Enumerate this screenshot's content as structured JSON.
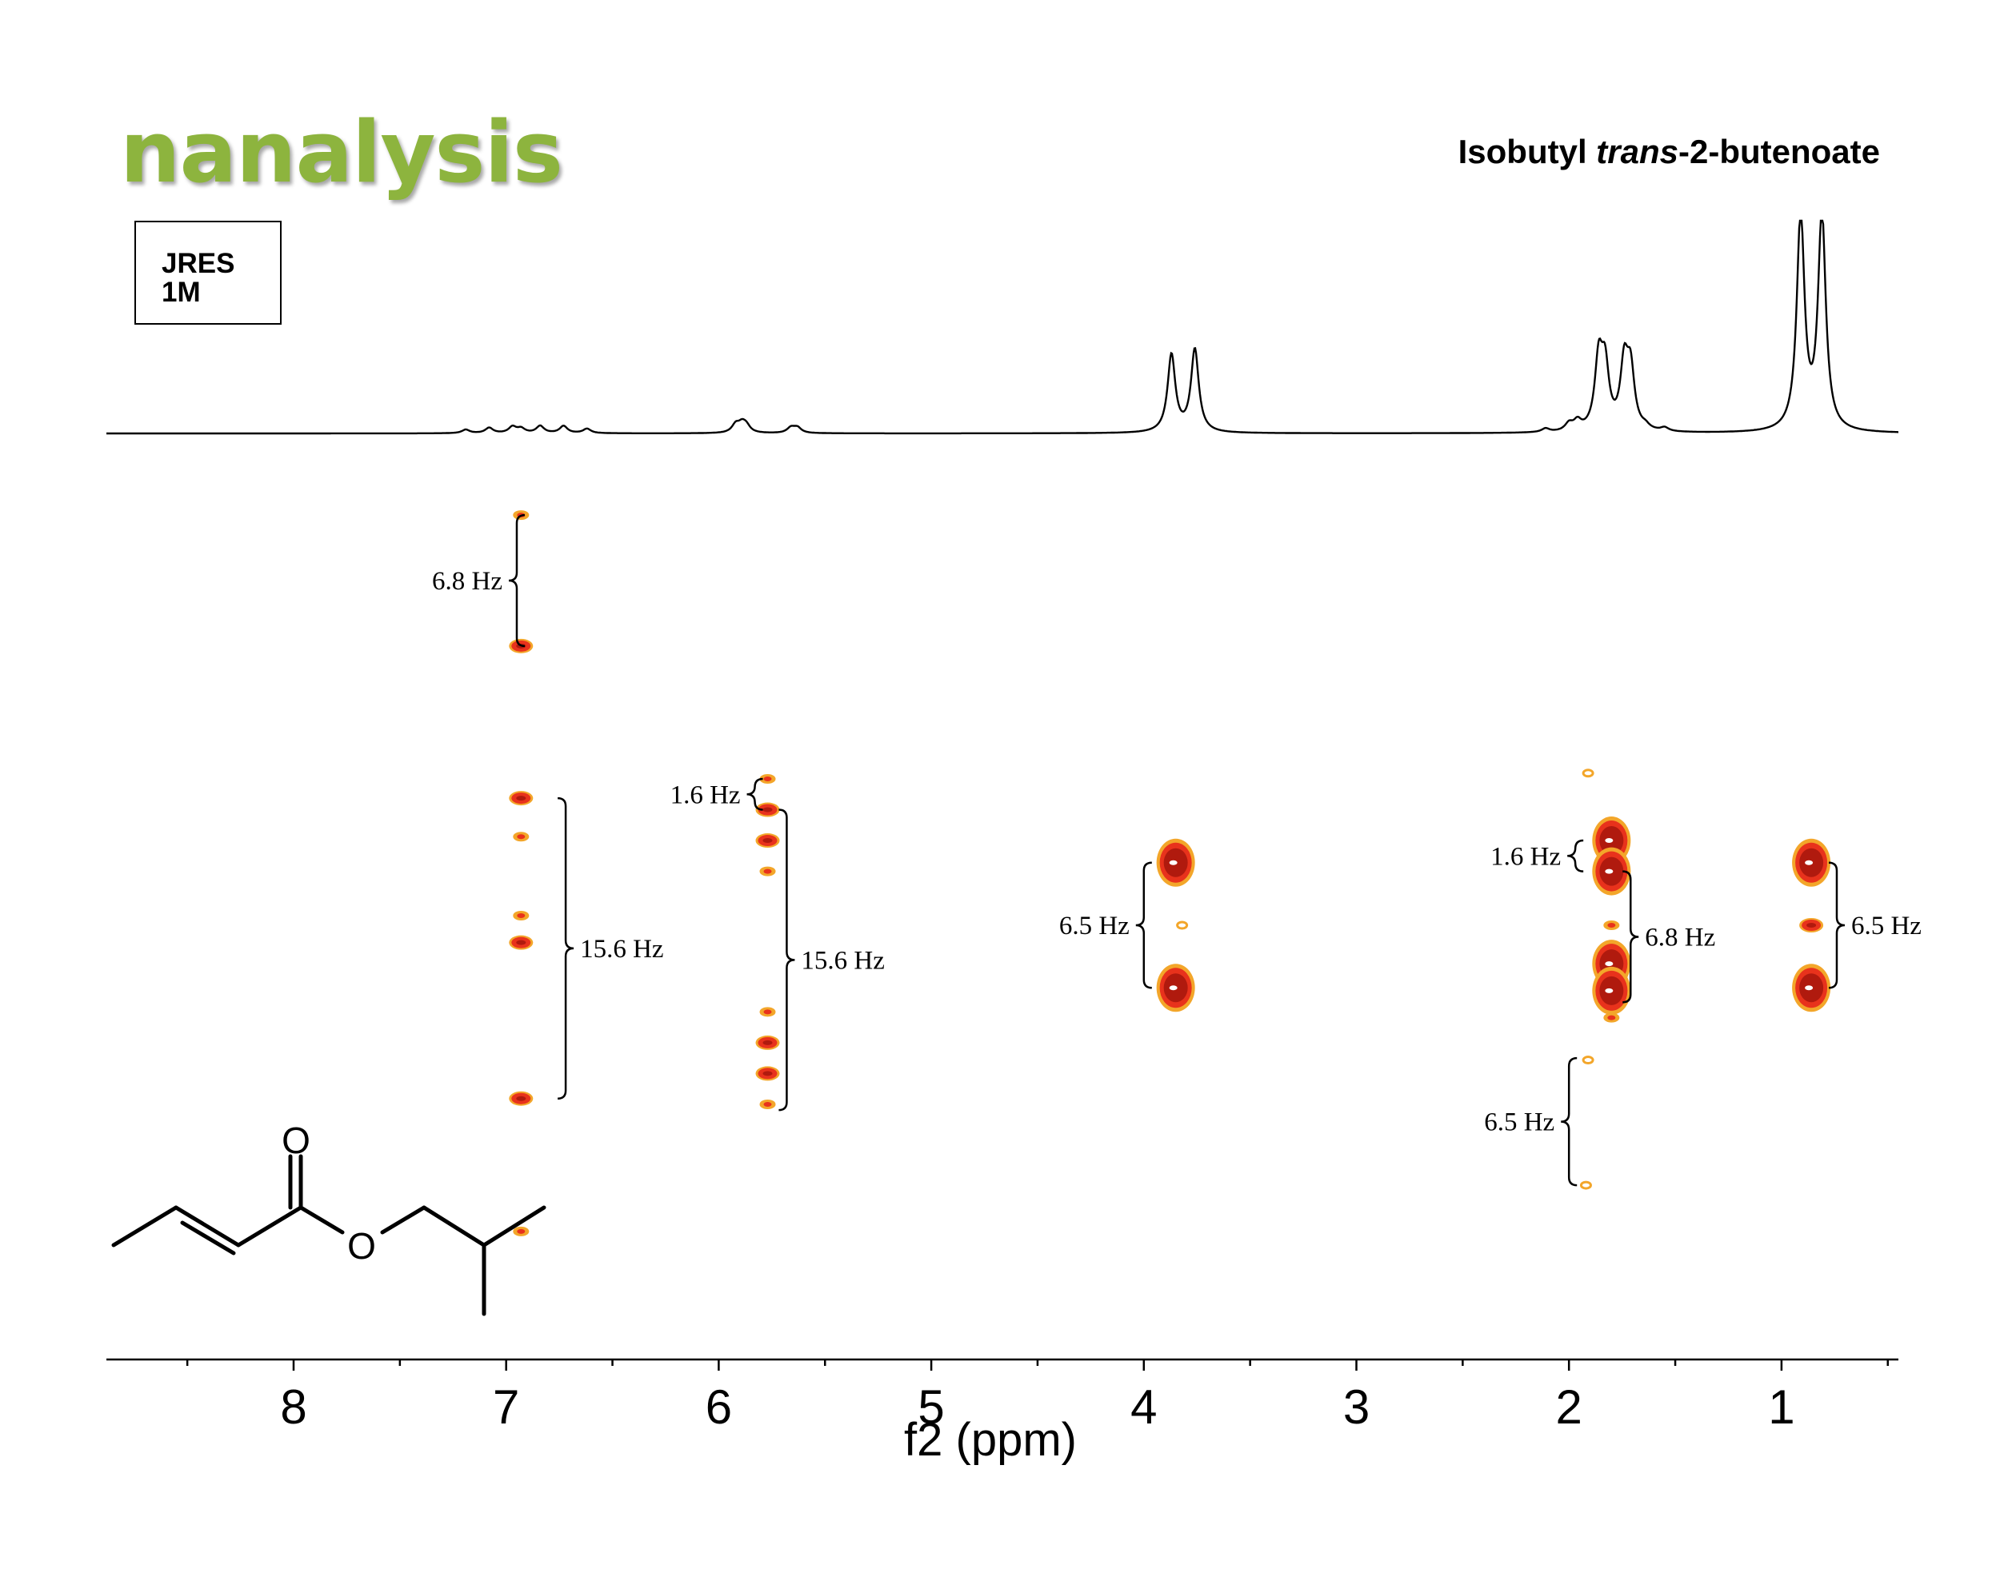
{
  "logo_text": "nanalysis",
  "compound": {
    "prefix": "Isobutyl ",
    "italic": "trans",
    "suffix": "-2-butenoate"
  },
  "experiment": {
    "line1": "JRES",
    "line2": "1M"
  },
  "colors": {
    "logo": "#8db43e",
    "contour_dark": "#b01a0e",
    "contour_mid": "#e8321c",
    "contour_light": "#f3a62a"
  },
  "chart_data": {
    "type": "2D NMR J-resolved contour with 1D projection",
    "xlabel": "f2 (ppm)",
    "xlim": [
      8.9,
      0.55
    ],
    "x_ticks": [
      8,
      7,
      6,
      5,
      4,
      3,
      2,
      1
    ],
    "x_tick_labels": [
      "8",
      "7",
      "6",
      "5",
      "4",
      "3",
      "2",
      "1"
    ],
    "projection_peaks_ppm": [
      {
        "ppm": 7.19,
        "h": 0.02
      },
      {
        "ppm": 7.08,
        "h": 0.03
      },
      {
        "ppm": 6.97,
        "h": 0.035
      },
      {
        "ppm": 6.93,
        "h": 0.025
      },
      {
        "ppm": 6.84,
        "h": 0.04
      },
      {
        "ppm": 6.73,
        "h": 0.04
      },
      {
        "ppm": 6.62,
        "h": 0.025
      },
      {
        "ppm": 5.92,
        "h": 0.045
      },
      {
        "ppm": 5.89,
        "h": 0.045
      },
      {
        "ppm": 5.87,
        "h": 0.035
      },
      {
        "ppm": 5.66,
        "h": 0.03
      },
      {
        "ppm": 5.63,
        "h": 0.03
      },
      {
        "ppm": 3.87,
        "h": 0.43
      },
      {
        "ppm": 3.76,
        "h": 0.46
      },
      {
        "ppm": 2.11,
        "h": 0.02
      },
      {
        "ppm": 2.0,
        "h": 0.04
      },
      {
        "ppm": 1.96,
        "h": 0.05
      },
      {
        "ppm": 1.86,
        "h": 0.38
      },
      {
        "ppm": 1.83,
        "h": 0.33
      },
      {
        "ppm": 1.74,
        "h": 0.35
      },
      {
        "ppm": 1.71,
        "h": 0.32
      },
      {
        "ppm": 1.64,
        "h": 0.02
      },
      {
        "ppm": 1.55,
        "h": 0.02
      },
      {
        "ppm": 0.91,
        "h": 1.2
      },
      {
        "ppm": 0.81,
        "h": 1.2
      }
    ],
    "cross_peaks": [
      {
        "ppm": 6.93,
        "f1": 21.3,
        "level": 1
      },
      {
        "ppm": 6.93,
        "f1": 14.5,
        "level": 2
      },
      {
        "ppm": 6.93,
        "f1": 6.6,
        "level": 2
      },
      {
        "ppm": 6.93,
        "f1": 4.6,
        "level": 1
      },
      {
        "ppm": 6.93,
        "f1": 0.5,
        "level": 1
      },
      {
        "ppm": 6.93,
        "f1": -0.9,
        "level": 2
      },
      {
        "ppm": 6.93,
        "f1": -9.0,
        "level": 2
      },
      {
        "ppm": 6.93,
        "f1": -15.9,
        "level": 1
      },
      {
        "ppm": 5.77,
        "f1": 7.6,
        "level": 1
      },
      {
        "ppm": 5.77,
        "f1": 6.0,
        "level": 2
      },
      {
        "ppm": 5.77,
        "f1": 4.4,
        "level": 2
      },
      {
        "ppm": 5.77,
        "f1": 2.8,
        "level": 1
      },
      {
        "ppm": 5.77,
        "f1": -4.5,
        "level": 1
      },
      {
        "ppm": 5.77,
        "f1": -6.1,
        "level": 2
      },
      {
        "ppm": 5.77,
        "f1": -7.7,
        "level": 2
      },
      {
        "ppm": 5.77,
        "f1": -9.3,
        "level": 1
      },
      {
        "ppm": 3.85,
        "f1": 3.25,
        "level": 3
      },
      {
        "ppm": 3.85,
        "f1": -3.25,
        "level": 3
      },
      {
        "ppm": 3.82,
        "f1": 0.0,
        "level": 0
      },
      {
        "ppm": 1.8,
        "f1": 4.4,
        "level": 3
      },
      {
        "ppm": 1.8,
        "f1": 2.8,
        "level": 3
      },
      {
        "ppm": 1.8,
        "f1": 0.0,
        "level": 1
      },
      {
        "ppm": 1.8,
        "f1": -2.0,
        "level": 3
      },
      {
        "ppm": 1.8,
        "f1": -3.4,
        "level": 3
      },
      {
        "ppm": 1.8,
        "f1": -4.8,
        "level": 1
      },
      {
        "ppm": 1.91,
        "f1": 7.9,
        "level": 0
      },
      {
        "ppm": 1.91,
        "f1": -7.0,
        "level": 0
      },
      {
        "ppm": 1.92,
        "f1": -13.5,
        "level": 0
      },
      {
        "ppm": 0.86,
        "f1": 3.25,
        "level": 3
      },
      {
        "ppm": 0.86,
        "f1": 0.0,
        "level": 2
      },
      {
        "ppm": 0.86,
        "f1": -3.25,
        "level": 3
      }
    ],
    "coupling_annotations": [
      {
        "label": "6.8 Hz",
        "ppm": 6.95,
        "f1_top": 21.3,
        "f1_bot": 14.5,
        "side": "left"
      },
      {
        "label": "1.6 Hz",
        "ppm": 5.83,
        "f1_top": 7.6,
        "f1_bot": 6.0,
        "side": "left"
      },
      {
        "label": "15.6 Hz",
        "ppm": 5.68,
        "f1_top": 6.0,
        "f1_bot": -9.6,
        "side": "right"
      },
      {
        "label": "15.6 Hz",
        "ppm": 6.72,
        "f1_top": 6.6,
        "f1_bot": -9.0,
        "side": "right"
      },
      {
        "label": "6.5 Hz",
        "ppm": 4.0,
        "f1_top": 3.25,
        "f1_bot": -3.25,
        "side": "left"
      },
      {
        "label": "1.6 Hz",
        "ppm": 1.97,
        "f1_top": 4.4,
        "f1_bot": 2.8,
        "side": "left"
      },
      {
        "label": "6.8 Hz",
        "ppm": 1.71,
        "f1_top": 2.8,
        "f1_bot": -4.0,
        "side": "right"
      },
      {
        "label": "6.5 Hz",
        "ppm": 0.74,
        "f1_top": 3.25,
        "f1_bot": -3.25,
        "side": "right"
      },
      {
        "label": "6.5 Hz",
        "ppm": 2.0,
        "f1_top": -6.9,
        "f1_bot": -13.5,
        "side": "left"
      }
    ]
  }
}
